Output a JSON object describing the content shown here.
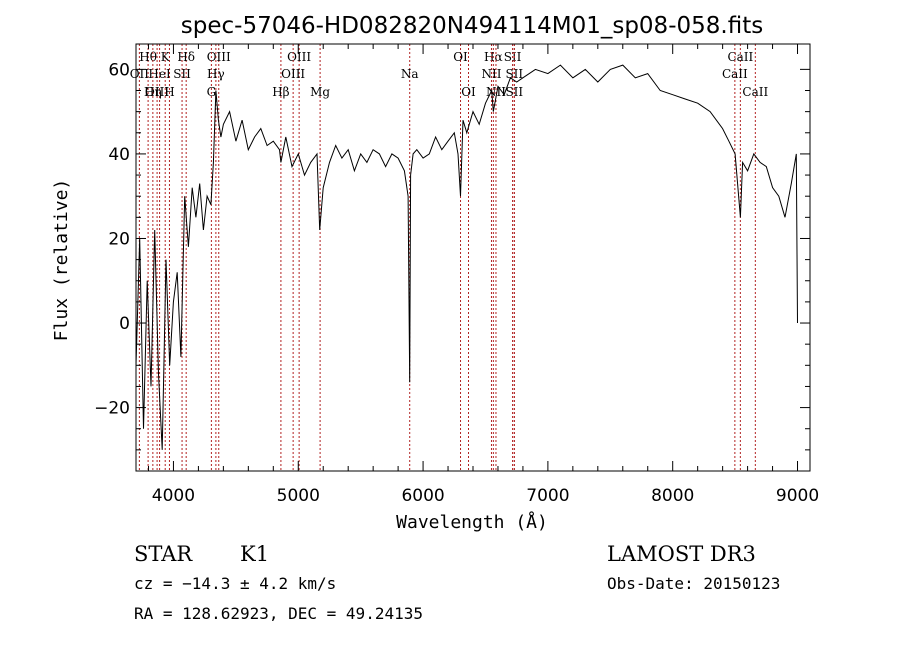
{
  "chart_data": {
    "type": "line",
    "title": "spec-57046-HD082820N494114M01_sp08-058.fits",
    "xlabel": "Wavelength (Å)",
    "ylabel": "Flux (relative)",
    "xlim": [
      3700,
      9100
    ],
    "ylim": [
      -35,
      66
    ],
    "x_ticks": [
      4000,
      5000,
      6000,
      7000,
      8000,
      9000
    ],
    "y_ticks": [
      -20,
      0,
      20,
      40,
      60
    ],
    "grid": false,
    "line_color": "#000000",
    "marker_color": "#b22222",
    "series": [
      {
        "x": [
          3700,
          3730,
          3760,
          3790,
          3820,
          3850,
          3880,
          3910,
          3940,
          3970,
          4000,
          4030,
          4060,
          4090,
          4120,
          4150,
          4180,
          4210,
          4240,
          4270,
          4300,
          4320,
          4340,
          4360,
          4380,
          4400,
          4450,
          4500,
          4550,
          4600,
          4650,
          4700,
          4750,
          4800,
          4850,
          4861,
          4900,
          4950,
          5000,
          5050,
          5100,
          5150,
          5172,
          5200,
          5250,
          5300,
          5350,
          5400,
          5450,
          5500,
          5550,
          5600,
          5650,
          5700,
          5750,
          5800,
          5850,
          5880,
          5893,
          5900,
          5920,
          5950,
          6000,
          6050,
          6100,
          6150,
          6200,
          6250,
          6280,
          6300,
          6320,
          6350,
          6400,
          6450,
          6500,
          6550,
          6563,
          6600,
          6650,
          6700,
          6750,
          6800,
          6900,
          7000,
          7100,
          7200,
          7300,
          7400,
          7500,
          7600,
          7700,
          7800,
          7900,
          8000,
          8100,
          8200,
          8300,
          8400,
          8450,
          8500,
          8542,
          8560,
          8600,
          8650,
          8700,
          8750,
          8800,
          8850,
          8900,
          8950,
          8990,
          9000
        ],
        "values": [
          -10,
          20,
          -25,
          10,
          -15,
          22,
          -12,
          -30,
          15,
          -10,
          5,
          12,
          -8,
          30,
          18,
          32,
          25,
          33,
          22,
          30,
          28,
          38,
          55,
          48,
          44,
          47,
          50,
          43,
          48,
          41,
          44,
          46,
          42,
          43,
          41,
          38,
          44,
          37,
          40,
          35,
          38,
          40,
          22,
          32,
          38,
          42,
          39,
          41,
          36,
          40,
          38,
          41,
          40,
          37,
          40,
          39,
          36,
          30,
          -14,
          35,
          40,
          41,
          39,
          40,
          44,
          41,
          43,
          45,
          40,
          30,
          48,
          45,
          50,
          47,
          52,
          55,
          50,
          56,
          54,
          58,
          57,
          58,
          60,
          59,
          61,
          58,
          60,
          57,
          60,
          61,
          58,
          59,
          55,
          54,
          53,
          52,
          50,
          46,
          43,
          40,
          25,
          38,
          36,
          40,
          38,
          37,
          32,
          30,
          25,
          33,
          40,
          0
        ]
      }
    ],
    "spectral_lines": [
      {
        "label": "Hθ",
        "wavelength": 3797,
        "row": 1
      },
      {
        "label": "OII",
        "wavelength": 3727,
        "row": 2
      },
      {
        "label": "OIII",
        "wavelength": 3869,
        "row": 3
      },
      {
        "label": "K",
        "wavelength": 3934,
        "row": 1
      },
      {
        "label": "HeI",
        "wavelength": 3889,
        "row": 2
      },
      {
        "label": "Hη",
        "wavelength": 3835,
        "row": 3
      },
      {
        "label": "H",
        "wavelength": 3968,
        "row": 3
      },
      {
        "label": "SII",
        "wavelength": 4069,
        "row": 2
      },
      {
        "label": "Hδ",
        "wavelength": 4102,
        "row": 1
      },
      {
        "label": "OIII",
        "wavelength": 4363,
        "row": 1
      },
      {
        "label": "Hγ",
        "wavelength": 4340,
        "row": 2
      },
      {
        "label": "G",
        "wavelength": 4304,
        "row": 3
      },
      {
        "label": "Hβ",
        "wavelength": 4861,
        "row": 3
      },
      {
        "label": "OIII",
        "wavelength": 5007,
        "row": 1
      },
      {
        "label": "OIII",
        "wavelength": 4959,
        "row": 2
      },
      {
        "label": "Mg",
        "wavelength": 5175,
        "row": 3
      },
      {
        "label": "Na",
        "wavelength": 5893,
        "row": 2
      },
      {
        "label": "OI",
        "wavelength": 6300,
        "row": 1
      },
      {
        "label": "OI",
        "wavelength": 6364,
        "row": 3
      },
      {
        "label": "Hα",
        "wavelength": 6563,
        "row": 1
      },
      {
        "label": "NII",
        "wavelength": 6548,
        "row": 2
      },
      {
        "label": "NII",
        "wavelength": 6584,
        "row": 3
      },
      {
        "label": "SII",
        "wavelength": 6717,
        "row": 1
      },
      {
        "label": "SII",
        "wavelength": 6731,
        "row": 2
      },
      {
        "label": "SII",
        "wavelength": 6731,
        "row": 3
      },
      {
        "label": "CaII",
        "wavelength": 8542,
        "row": 1
      },
      {
        "label": "CaII",
        "wavelength": 8498,
        "row": 2
      },
      {
        "label": "CaII",
        "wavelength": 8662,
        "row": 3
      }
    ]
  },
  "info": {
    "object_class": "STAR",
    "subclass": "K1",
    "survey": "LAMOST DR3",
    "redshift": "cz = −14.3 ± 4.2 km/s",
    "obs_date": "Obs-Date: 20150123",
    "coords": "RA = 128.62923, DEC =  49.24135"
  }
}
